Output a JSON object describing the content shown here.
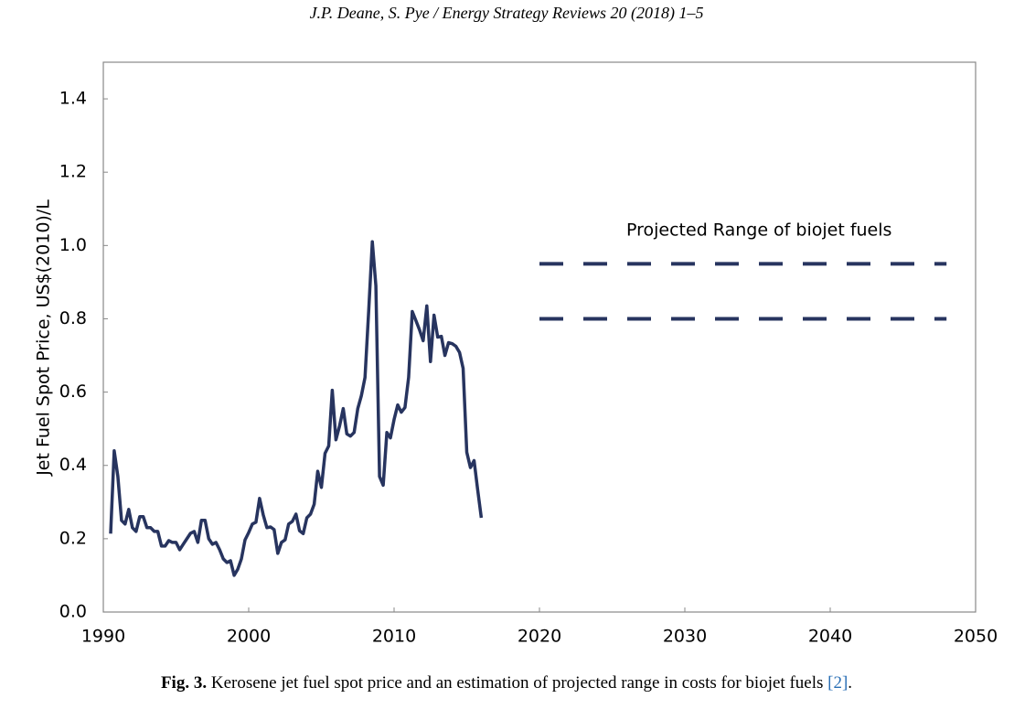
{
  "header": "J.P. Deane, S. Pye / Energy Strategy Reviews 20 (2018) 1–5",
  "caption": {
    "label": "Fig. 3.",
    "text": "Kerosene jet fuel spot price and an estimation of projected range in costs for biojet fuels",
    "ref": "[2]",
    "end": "."
  },
  "chart_data": {
    "type": "line",
    "ylabel": "Jet Fuel Spot Price, US$(2010)/L",
    "annotation": "Projected Range of biojet fuels",
    "xlim": [
      1990,
      2050
    ],
    "xticks": [
      1990,
      2000,
      2010,
      2020,
      2030,
      2040,
      2050
    ],
    "ylim": [
      0,
      1.5
    ],
    "yticks": [
      {
        "value": 0,
        "label": "0.0"
      },
      0.2,
      0.4,
      0.6,
      0.8,
      {
        "value": 1,
        "label": "1.0"
      },
      1.2,
      1.4
    ],
    "series": [
      {
        "color": "#27345f",
        "dashed": false,
        "x": [
          1990.5,
          1990.75,
          1991,
          1991.25,
          1991.5,
          1991.75,
          1992,
          1992.25,
          1992.5,
          1992.75,
          1993,
          1993.25,
          1993.5,
          1993.75,
          1994,
          1994.25,
          1994.5,
          1994.75,
          1995,
          1995.25,
          1995.5,
          1995.75,
          1996,
          1996.25,
          1996.5,
          1996.75,
          1997,
          1997.25,
          1997.5,
          1997.75,
          1998,
          1998.25,
          1998.5,
          1998.75,
          1999,
          1999.25,
          1999.5,
          1999.75,
          2000,
          2000.25,
          2000.5,
          2000.75,
          2001,
          2001.25,
          2001.5,
          2001.75,
          2002,
          2002.25,
          2002.5,
          2002.75,
          2003,
          2003.25,
          2003.5,
          2003.75,
          2004,
          2004.25,
          2004.5,
          2004.75,
          2005,
          2005.25,
          2005.5,
          2005.75,
          2006,
          2006.25,
          2006.5,
          2006.75,
          2007,
          2007.25,
          2007.5,
          2007.75,
          2008,
          2008.25,
          2008.5,
          2008.75,
          2009,
          2009.25,
          2009.5,
          2009.75,
          2010,
          2010.25,
          2010.5,
          2010.75,
          2011,
          2011.25,
          2011.5,
          2011.75,
          2012,
          2012.25,
          2012.5,
          2012.75,
          2013,
          2013.25,
          2013.5,
          2013.75,
          2014,
          2014.25,
          2014.5,
          2014.75,
          2015,
          2015.25,
          2015.5,
          2015.75,
          2016
        ],
        "values": [
          0.214,
          0.44,
          0.37,
          0.25,
          0.24,
          0.28,
          0.23,
          0.22,
          0.26,
          0.26,
          0.23,
          0.23,
          0.22,
          0.22,
          0.18,
          0.18,
          0.195,
          0.19,
          0.19,
          0.17,
          0.185,
          0.2,
          0.215,
          0.22,
          0.19,
          0.25,
          0.25,
          0.2,
          0.185,
          0.19,
          0.17,
          0.145,
          0.135,
          0.14,
          0.1,
          0.117,
          0.145,
          0.197,
          0.217,
          0.24,
          0.245,
          0.31,
          0.265,
          0.23,
          0.232,
          0.225,
          0.16,
          0.19,
          0.197,
          0.24,
          0.247,
          0.267,
          0.222,
          0.214,
          0.257,
          0.267,
          0.294,
          0.384,
          0.34,
          0.433,
          0.453,
          0.605,
          0.47,
          0.508,
          0.555,
          0.486,
          0.48,
          0.49,
          0.555,
          0.59,
          0.64,
          0.82,
          1.01,
          0.89,
          0.37,
          0.346,
          0.49,
          0.475,
          0.525,
          0.565,
          0.545,
          0.558,
          0.64,
          0.82,
          0.795,
          0.77,
          0.74,
          0.835,
          0.683,
          0.81,
          0.75,
          0.752,
          0.7,
          0.735,
          0.732,
          0.725,
          0.708,
          0.665,
          0.436,
          0.394,
          0.413,
          0.334,
          0.257
        ]
      },
      {
        "color": "#27345f",
        "dashed": true,
        "x": [
          2020,
          2048
        ],
        "values": [
          0.95,
          0.95
        ]
      },
      {
        "color": "#27345f",
        "dashed": true,
        "x": [
          2020,
          2048
        ],
        "values": [
          0.8,
          0.8
        ]
      }
    ]
  }
}
